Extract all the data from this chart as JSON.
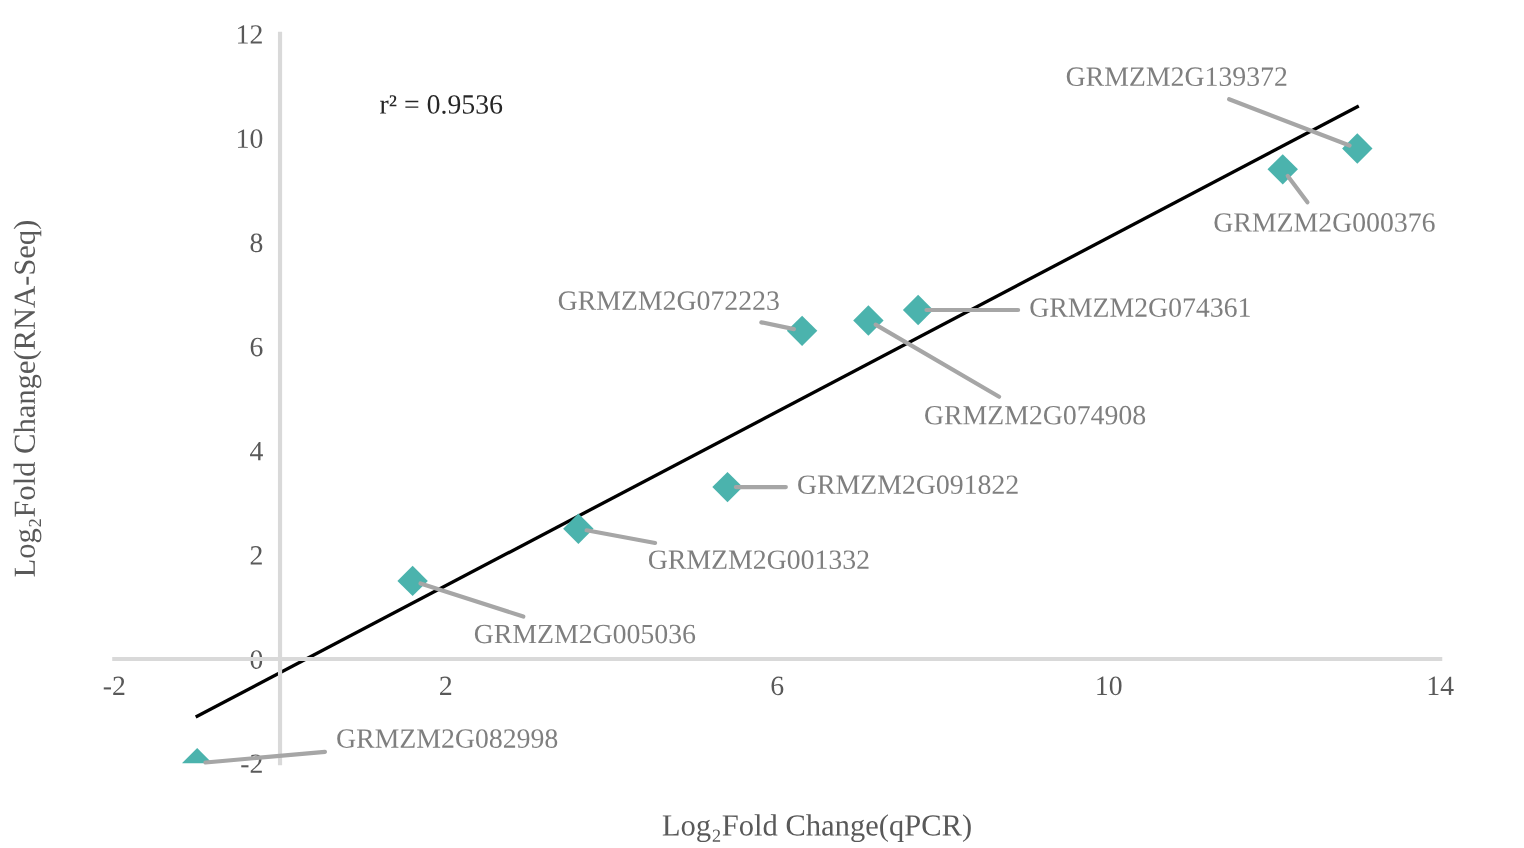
{
  "chart_data": {
    "type": "scatter",
    "xlabel": "Log₂Fold Change(qPCR)",
    "ylabel": "Log₂Fold Change(RNA-Seq)",
    "xlim": [
      -2,
      14
    ],
    "ylim": [
      -2,
      12
    ],
    "xticks": [
      -2,
      2,
      6,
      10,
      14
    ],
    "yticks": [
      -2,
      0,
      2,
      4,
      6,
      8,
      10,
      12
    ],
    "grid": false,
    "series": [
      {
        "marker": "diamond",
        "color": "#4bb3ad",
        "x": [
          -1.0,
          1.6,
          3.6,
          5.4,
          6.3,
          7.1,
          7.7,
          12.1,
          13.0
        ],
        "values": [
          -2.0,
          1.5,
          2.5,
          3.3,
          6.3,
          6.5,
          6.7,
          9.4,
          9.8
        ]
      },
      {
        "type": "line",
        "color": "#000000",
        "x": [
          -1.0,
          13.0
        ],
        "values": [
          -1.1,
          10.6
        ]
      }
    ],
    "annotations": [
      "r² = 0.9536",
      {
        "text": "GRMZM2G082998",
        "x": -1.0,
        "y": -2.0
      },
      {
        "text": "GRMZM2G005036",
        "x": 1.6,
        "y": 1.5
      },
      {
        "text": "GRMZM2G001332",
        "x": 3.6,
        "y": 2.5
      },
      {
        "text": "GRMZM2G091822",
        "x": 5.4,
        "y": 3.3
      },
      {
        "text": "GRMZM2G072223",
        "x": 6.3,
        "y": 6.3
      },
      {
        "text": "GRMZM2G074908",
        "x": 7.1,
        "y": 6.5
      },
      {
        "text": "GRMZM2G074361",
        "x": 7.7,
        "y": 6.7
      },
      {
        "text": "GRMZM2G000376",
        "x": 12.1,
        "y": 9.4
      },
      {
        "text": "GRMZM2G139372",
        "x": 13.0,
        "y": 9.8
      }
    ]
  }
}
